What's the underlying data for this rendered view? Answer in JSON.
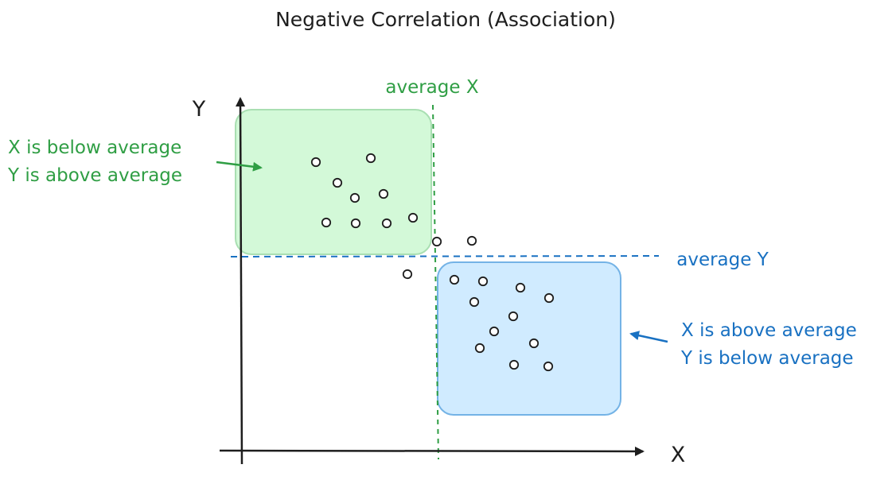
{
  "diagram": {
    "title": "Negative Correlation (Association)",
    "axis_x_label": "X",
    "axis_y_label": "Y",
    "average_x_label": "average X",
    "average_y_label": "average Y",
    "upper_left_annotation": {
      "line1": "X is below average",
      "line2": "Y is above average"
    },
    "lower_right_annotation": {
      "line1": "X is above average",
      "line2": "Y is below average"
    }
  },
  "colors": {
    "ink": "#1e1e1e",
    "green": "#2f9e44",
    "green_fill": "#d3f9d8",
    "green_stroke": "#a9dfb2",
    "blue": "#1971c2",
    "blue_fill": "#d0ebff",
    "blue_stroke": "#74b3e6"
  },
  "points": {
    "upper_left_count": 10,
    "middle_count": 3,
    "lower_right_count": 12
  }
}
